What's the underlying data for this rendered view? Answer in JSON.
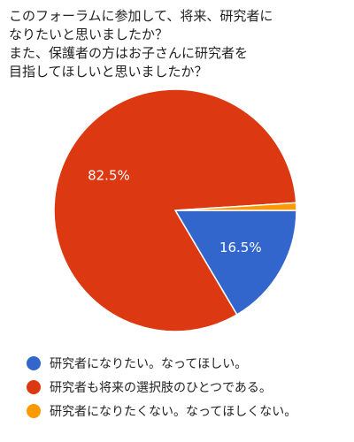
{
  "chart_data": {
    "type": "pie",
    "title_lines": [
      "このフォーラムに参加して、将来、研究者に",
      "なりたいと思いましたか？",
      "また、保護者の方はお子さんに研究者を",
      "目指してほしいと思いましたか？"
    ],
    "slices": [
      {
        "label": "研究者になりたい。なってほしい。",
        "value": 16.5,
        "color": "#3366cc",
        "data_label": "16.5%"
      },
      {
        "label": "研究者も将来の選択肢のひとつである。",
        "value": 82.5,
        "color": "#dc3912",
        "data_label": "82.5%"
      },
      {
        "label": "研究者になりたくない。なってほしくない。",
        "value": 1.0,
        "color": "#ff9900",
        "data_label": ""
      }
    ],
    "legend_position": "bottom"
  }
}
